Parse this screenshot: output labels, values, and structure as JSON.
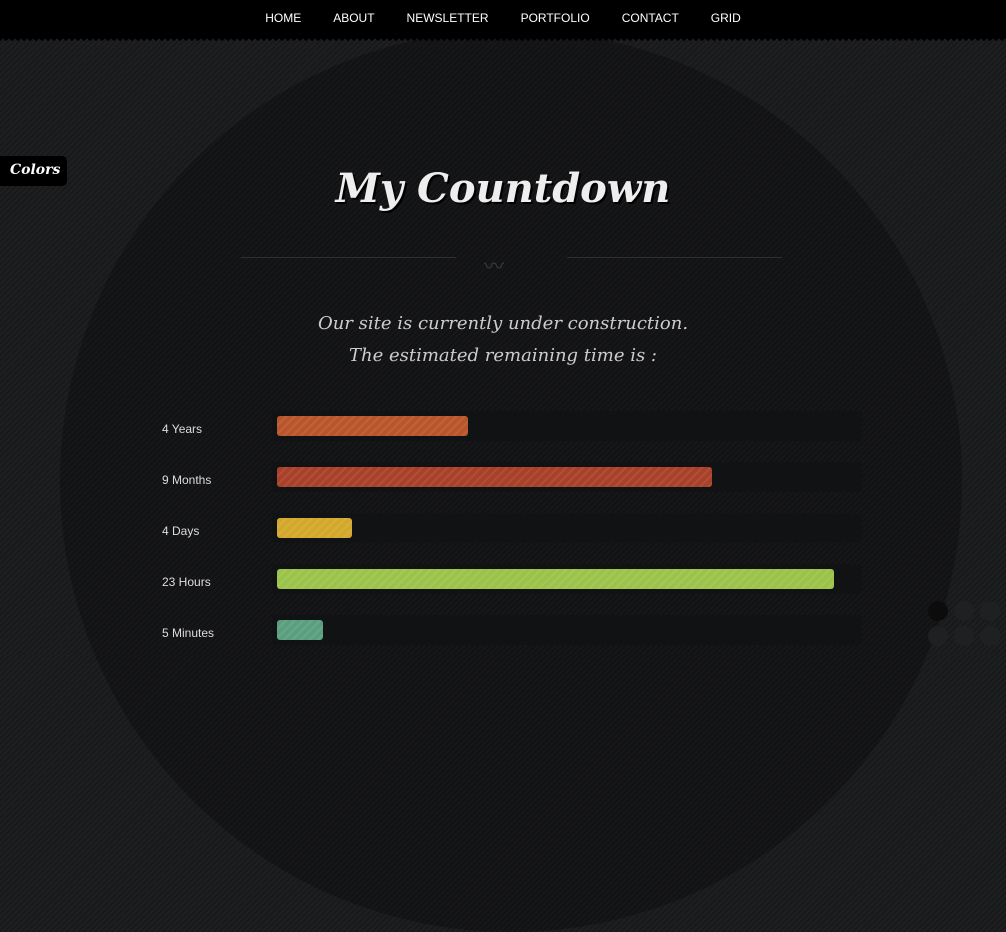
{
  "nav": [
    "HOME",
    "ABOUT",
    "NEWSLETTER",
    "PORTFOLIO",
    "CONTACT",
    "GRID"
  ],
  "colors_tab": "Colors",
  "title": "My Countdown",
  "subtitle": [
    "Our site is currently under construction.",
    "The estimated remaining time is :"
  ],
  "bars": [
    {
      "label": "4 Years",
      "percent": 33,
      "color": "#b9552a"
    },
    {
      "label": "9 Months",
      "percent": 75,
      "color": "#a8402a"
    },
    {
      "label": "4 Days",
      "percent": 13,
      "color": "#d4a82d"
    },
    {
      "label": "23 Hours",
      "percent": 96,
      "color": "#9bc34a"
    },
    {
      "label": "5 Minutes",
      "percent": 8,
      "color": "#5a9e7f"
    }
  ]
}
